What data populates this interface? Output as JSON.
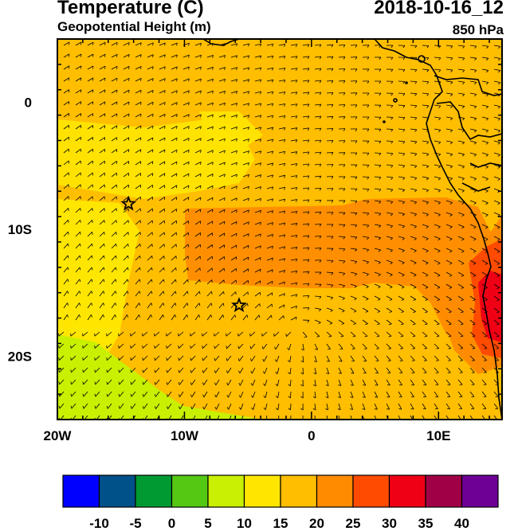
{
  "header": {
    "title_left": "Temperature (C)",
    "subtitle_left": "Geopotential Height (m)",
    "title_right": "2018-10-16_12",
    "subtitle_right": "850 hPa"
  },
  "map": {
    "lon_range": [
      -20,
      15
    ],
    "lat_range": [
      -25,
      5
    ],
    "x_ticks": [
      {
        "value": -20,
        "label": "20W"
      },
      {
        "value": -10,
        "label": "10W"
      },
      {
        "value": 0,
        "label": "0"
      },
      {
        "value": 10,
        "label": "10E"
      }
    ],
    "y_ticks": [
      {
        "value": 0,
        "label": "0"
      },
      {
        "value": -10,
        "label": "10S"
      },
      {
        "value": -20,
        "label": "20S"
      }
    ],
    "markers": [
      {
        "name": "star-marker-north",
        "lon": -14.4,
        "lat": -8.0,
        "symbol": "star"
      },
      {
        "name": "star-marker-south",
        "lon": -5.7,
        "lat": -16.0,
        "symbol": "star"
      }
    ],
    "coastline_color": "#000000"
  },
  "colorbar": {
    "colors": [
      "#0000ff",
      "#00508a",
      "#009a32",
      "#55c814",
      "#c8f000",
      "#ffe600",
      "#ffbe00",
      "#ff8c00",
      "#ff4b00",
      "#f00014",
      "#a00046",
      "#6e0096"
    ],
    "labels": [
      "-10",
      "-5",
      "0",
      "5",
      "10",
      "15",
      "20",
      "25",
      "30",
      "35",
      "40"
    ]
  }
}
